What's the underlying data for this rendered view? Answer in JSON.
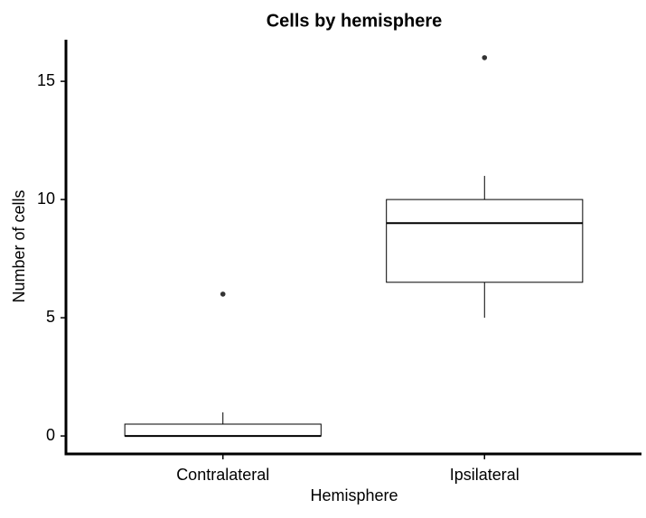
{
  "chart_data": {
    "type": "box",
    "title": "Cells by hemisphere",
    "x_label": "Hemisphere",
    "y_label": "Number of cells",
    "categories": [
      "Contralateral",
      "Ipsilateral"
    ],
    "boxes": [
      {
        "min": 0,
        "q1": 0,
        "median": 0,
        "q3": 0.5,
        "max": 1,
        "outliers": [
          6
        ]
      },
      {
        "min": 5,
        "q1": 6.5,
        "median": 9,
        "q3": 10,
        "max": 11,
        "outliers": [
          16
        ]
      }
    ],
    "color": "#ffffff",
    "ylim": [
      -0.76,
      16.76
    ],
    "yticks": [
      0,
      5,
      10,
      15
    ],
    "grid": false
  }
}
